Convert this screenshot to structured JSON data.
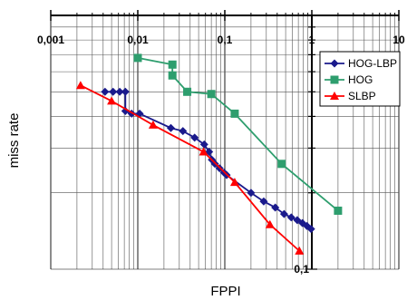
{
  "chart_data": {
    "type": "line",
    "title": "",
    "xlabel": "FPPI",
    "ylabel": "miss rate",
    "x_scale": "log",
    "y_scale": "log",
    "xlim": [
      0.001,
      10
    ],
    "ylim": [
      0.1,
      1
    ],
    "x_tick_labels": [
      "0,001",
      "0,01",
      "0,1",
      "1",
      "10"
    ],
    "y_tick_labels": [
      "0,1",
      "1"
    ],
    "grid": true,
    "legend_position": "top-right",
    "series": [
      {
        "name": "HOG-LBP",
        "color": "#1a1a8c",
        "marker": "diamond",
        "points": [
          [
            0.0042,
            0.5
          ],
          [
            0.0052,
            0.5
          ],
          [
            0.0062,
            0.5
          ],
          [
            0.0072,
            0.5
          ],
          [
            0.0072,
            0.42
          ],
          [
            0.0085,
            0.41
          ],
          [
            0.0105,
            0.41
          ],
          [
            0.024,
            0.36
          ],
          [
            0.033,
            0.35
          ],
          [
            0.045,
            0.33
          ],
          [
            0.058,
            0.31
          ],
          [
            0.066,
            0.29
          ],
          [
            0.071,
            0.27
          ],
          [
            0.077,
            0.26
          ],
          [
            0.087,
            0.25
          ],
          [
            0.098,
            0.24
          ],
          [
            0.105,
            0.235
          ],
          [
            0.2,
            0.2
          ],
          [
            0.28,
            0.185
          ],
          [
            0.38,
            0.175
          ],
          [
            0.48,
            0.165
          ],
          [
            0.58,
            0.16
          ],
          [
            0.68,
            0.156
          ],
          [
            0.78,
            0.152
          ],
          [
            0.88,
            0.148
          ],
          [
            0.98,
            0.144
          ]
        ]
      },
      {
        "name": "HOG",
        "color": "#2e9e6e",
        "marker": "square",
        "points": [
          [
            0.01,
            0.68
          ],
          [
            0.025,
            0.64
          ],
          [
            0.025,
            0.58
          ],
          [
            0.037,
            0.5
          ],
          [
            0.07,
            0.49
          ],
          [
            0.13,
            0.41
          ],
          [
            0.45,
            0.26
          ],
          [
            2.0,
            0.17
          ]
        ]
      },
      {
        "name": "SLBP",
        "color": "#ff0000",
        "marker": "triangle",
        "points": [
          [
            0.0022,
            0.53
          ],
          [
            0.005,
            0.46
          ],
          [
            0.015,
            0.37
          ],
          [
            0.057,
            0.29
          ],
          [
            0.13,
            0.22
          ],
          [
            0.33,
            0.15
          ],
          [
            0.72,
            0.118
          ]
        ]
      }
    ]
  }
}
